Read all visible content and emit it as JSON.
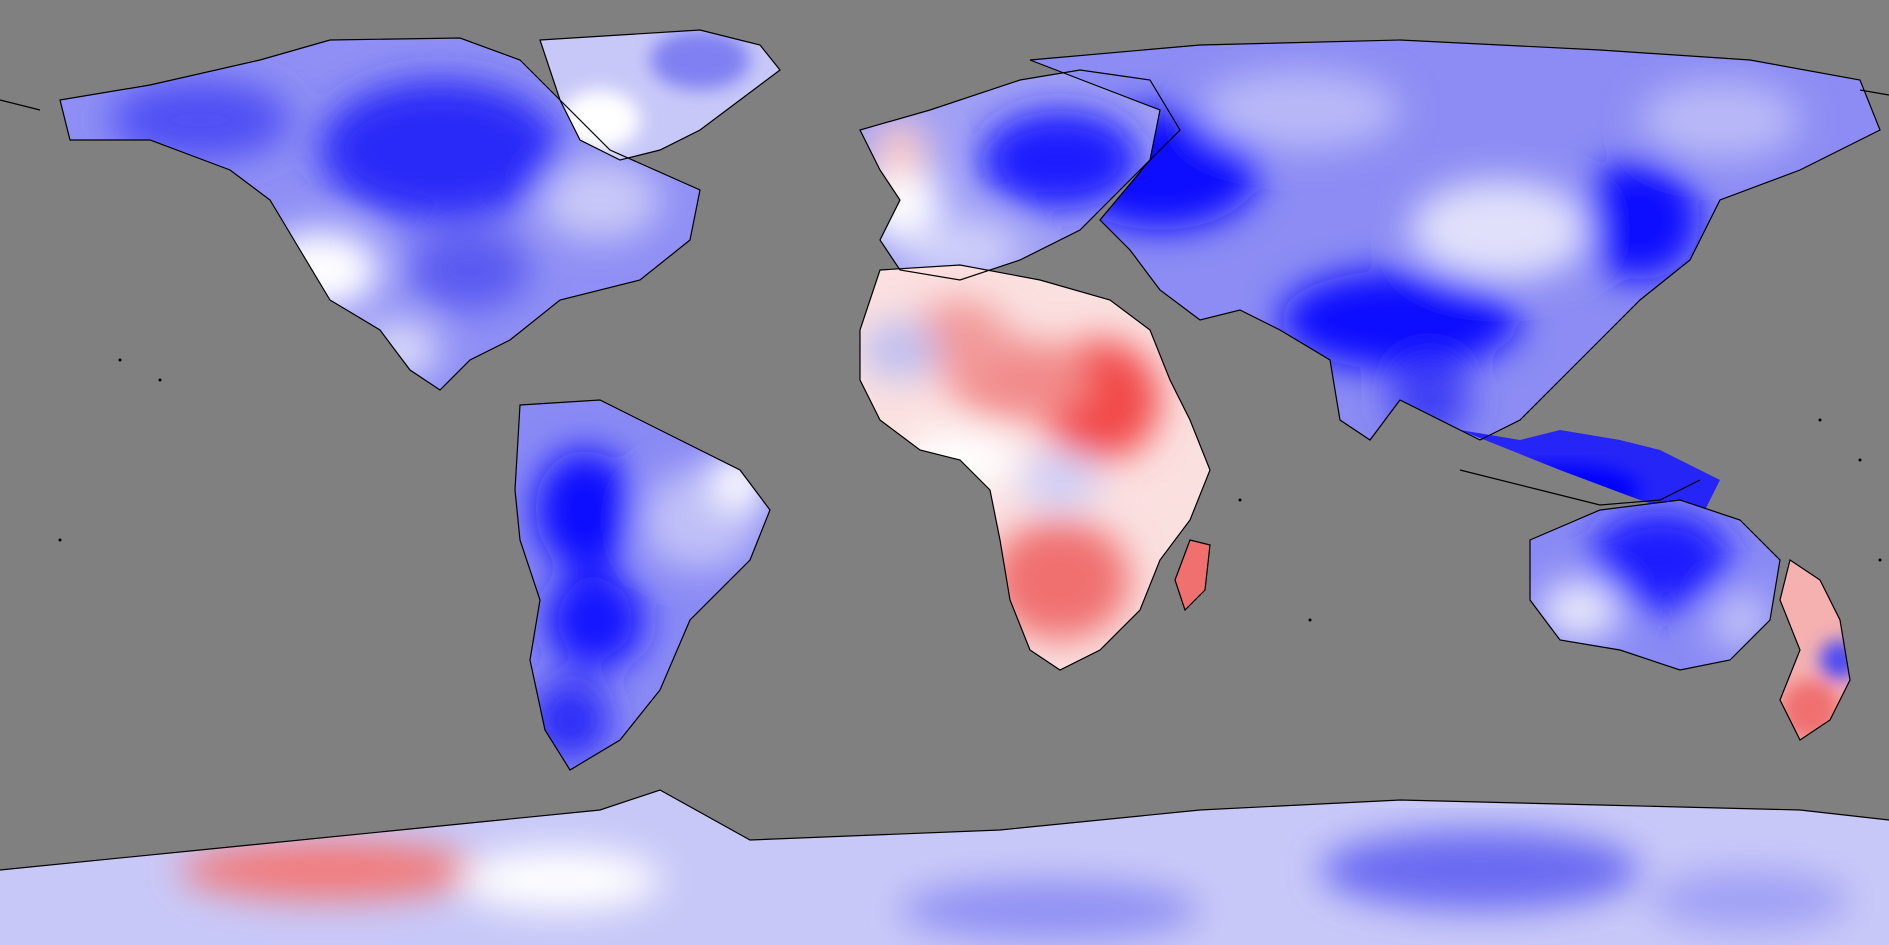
{
  "map": {
    "projection": "equirectangular",
    "extent": {
      "lon": [
        -180,
        180
      ],
      "lat": [
        -90,
        90
      ]
    },
    "ocean_color": "#808080",
    "coastline_color": "#000000",
    "color_scale": {
      "strong_negative": "#0000ff",
      "mid_negative": "#6a6af2",
      "weak_negative": "#c8c8f8",
      "neutral": "#ffffff",
      "weak_positive": "#f8c8c8",
      "mid_positive": "#f28a8a",
      "strong_positive": "#f24a4a"
    },
    "regions": [
      {
        "name": "north-america",
        "tone": "mid_negative"
      },
      {
        "name": "greenland",
        "tone": "weak_negative"
      },
      {
        "name": "south-america",
        "tone": "mid_negative"
      },
      {
        "name": "europe",
        "tone": "mid_negative"
      },
      {
        "name": "russia",
        "tone": "strong_negative"
      },
      {
        "name": "asia",
        "tone": "mid_negative"
      },
      {
        "name": "north-africa",
        "tone": "weak_positive"
      },
      {
        "name": "east-africa",
        "tone": "mid_positive"
      },
      {
        "name": "southern-africa",
        "tone": "mid_positive"
      },
      {
        "name": "madagascar",
        "tone": "mid_positive"
      },
      {
        "name": "southeast-asia",
        "tone": "strong_negative"
      },
      {
        "name": "australia",
        "tone": "mid_negative"
      },
      {
        "name": "new-zealand",
        "tone": "mid_positive"
      },
      {
        "name": "antarctica",
        "tone": "weak_negative"
      }
    ]
  }
}
